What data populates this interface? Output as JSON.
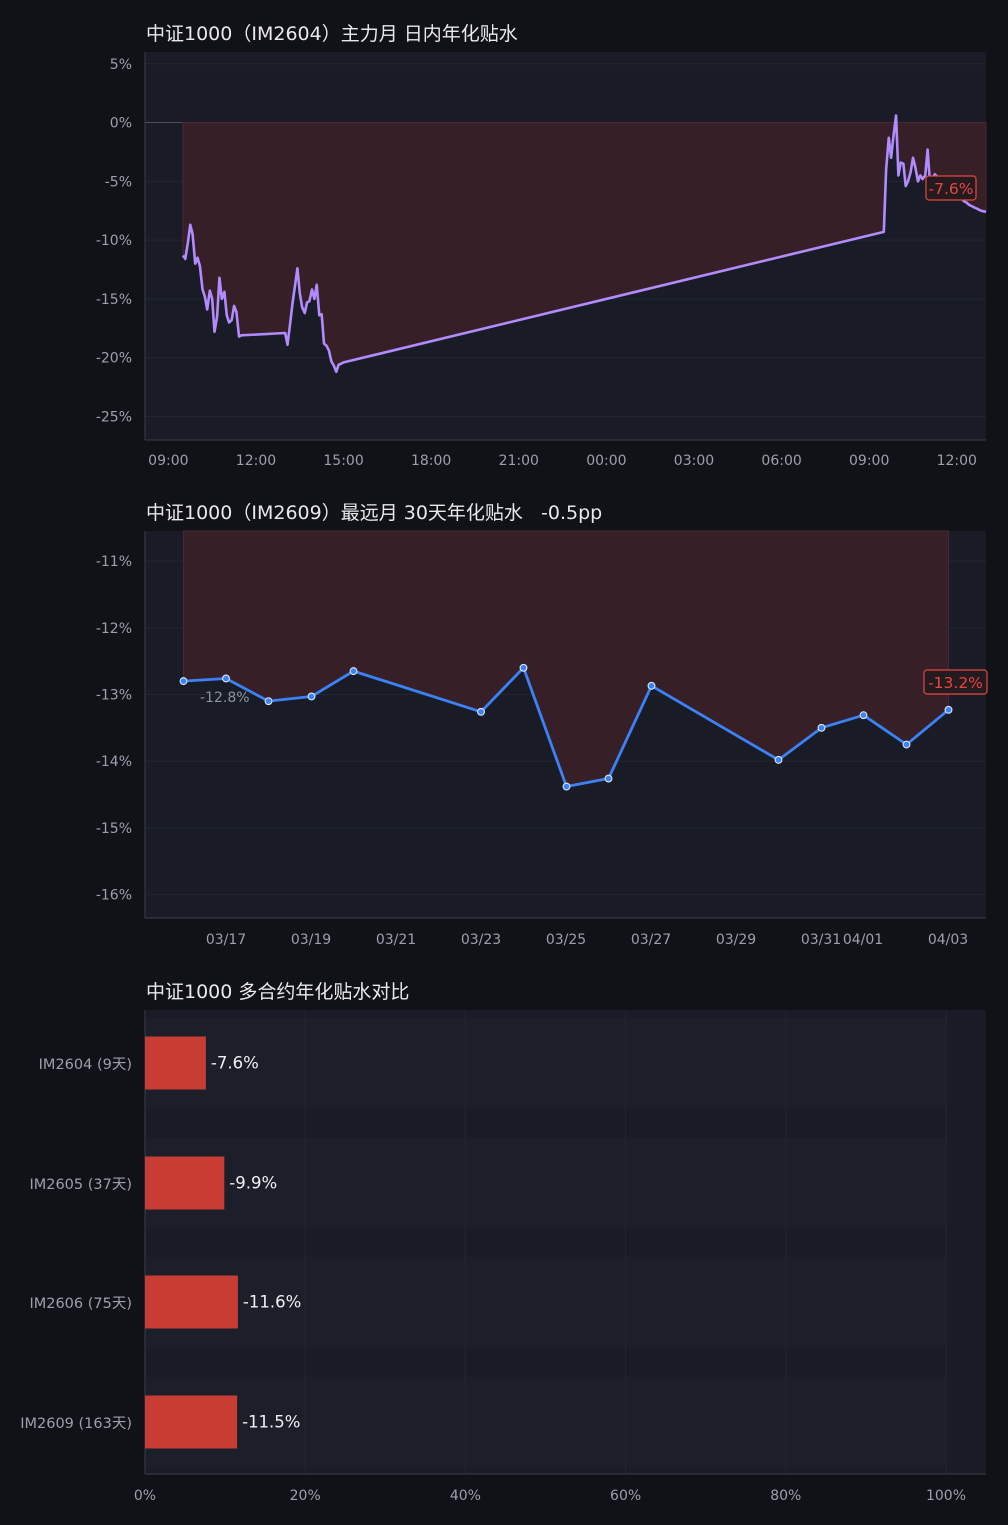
{
  "colors": {
    "background": "#101217",
    "plot_bg": "#191c26",
    "axis": "#3a3e4a",
    "grid": "#222633",
    "tick_text": "#9aa0ae",
    "title_text": "#e9e9ec",
    "fill_red": "#3a2028",
    "line_purple": "#b08cff",
    "line_blue": "#3b82f6",
    "bar_red": "#c73c33",
    "label_red": "#e5483d"
  },
  "chart_data": [
    {
      "type": "line",
      "title": "中证1000（IM2604）主力月 日内年化贴水",
      "x_ticks": [
        "09:00",
        "12:00",
        "15:00",
        "18:00",
        "21:00",
        "00:00",
        "03:00",
        "06:00",
        "09:00",
        "12:00"
      ],
      "y_ticks": [
        "5%",
        "0%",
        "-5%",
        "-10%",
        "-15%",
        "-20%",
        "-25%"
      ],
      "ylim": [
        -27,
        6
      ],
      "xlim_hours": [
        8.2,
        37.0
      ],
      "grid": true,
      "end_label": "-7.6%",
      "series": [
        {
          "x_hours": [
            9.5,
            9.58,
            9.67,
            9.75,
            9.83,
            9.92,
            10.0,
            10.08,
            10.17,
            10.25,
            10.33,
            10.42,
            10.5,
            10.58,
            10.67,
            10.75,
            10.83,
            10.92,
            11.0,
            11.08,
            11.17,
            11.25,
            11.33,
            11.42,
            11.5,
            13.0,
            13.08,
            13.17,
            13.25,
            13.33,
            13.42,
            13.5,
            13.58,
            13.67,
            13.75,
            13.83,
            13.92,
            14.0,
            14.08,
            14.17,
            14.25,
            14.33,
            14.42,
            14.5,
            14.58,
            14.67,
            14.75,
            14.83,
            14.92,
            15.0,
            33.5,
            33.58,
            33.67,
            33.75,
            33.83,
            33.92,
            34.0,
            34.08,
            34.17,
            34.25,
            34.33,
            34.42,
            34.5,
            34.58,
            34.67,
            34.75,
            34.83,
            34.92,
            35.0,
            35.08,
            35.17,
            35.25,
            35.33,
            35.42,
            35.5,
            35.58,
            35.67,
            35.75,
            35.83,
            35.92,
            36.0,
            36.08,
            36.17,
            36.25,
            36.33,
            36.42,
            36.5,
            36.58,
            36.67,
            36.75,
            36.83,
            36.92,
            37.0
          ],
          "y": [
            -11.3,
            -11.6,
            -10.2,
            -8.7,
            -9.5,
            -12.0,
            -11.5,
            -12.2,
            -14.2,
            -14.8,
            -15.9,
            -14.3,
            -15.0,
            -17.8,
            -16.5,
            -13.2,
            -15.0,
            -14.4,
            -16.4,
            -17.0,
            -16.8,
            -15.6,
            -16.1,
            -18.2,
            -18.1,
            -17.9,
            -18.9,
            -17.1,
            -15.4,
            -14.0,
            -12.4,
            -14.5,
            -15.7,
            -16.2,
            -15.3,
            -15.2,
            -14.2,
            -15.0,
            -13.8,
            -16.4,
            -16.3,
            -18.8,
            -19.0,
            -19.4,
            -20.3,
            -20.7,
            -21.2,
            -20.6,
            -20.5,
            -20.4,
            -9.3,
            -4.0,
            -1.3,
            -3.0,
            -1.2,
            0.6,
            -4.5,
            -3.4,
            -3.5,
            -5.4,
            -5.0,
            -4.2,
            -3.0,
            -3.8,
            -5.0,
            -4.5,
            -4.8,
            -4.5,
            -2.3,
            -5.1,
            -4.7,
            -4.4,
            -4.6,
            -4.9,
            -5.1,
            -5.4,
            -5.6,
            -5.7,
            -5.9,
            -6.0,
            -6.2,
            -6.4,
            -6.5,
            -6.7,
            -6.8,
            -7.0,
            -7.1,
            -7.2,
            -7.3,
            -7.4,
            -7.5,
            -7.55,
            -7.6
          ]
        }
      ]
    },
    {
      "type": "line",
      "title": "中证1000（IM2609）最远月 30天年化贴水   -0.5pp",
      "x_ticks": [
        "03/17",
        "03/19",
        "03/21",
        "03/23",
        "03/25",
        "03/27",
        "03/29",
        "03/31",
        "04/01",
        "04/03"
      ],
      "y_ticks": [
        "-11%",
        "-12%",
        "-13%",
        "-14%",
        "-15%",
        "-16%"
      ],
      "ylim": [
        -16.35,
        -10.55
      ],
      "grid": true,
      "start_label": "-12.8%",
      "end_label": "-13.2%",
      "series": [
        {
          "x": [
            "03/16",
            "03/17",
            "03/18",
            "03/19",
            "03/20",
            "03/23",
            "03/24",
            "03/25",
            "03/26",
            "03/27",
            "03/30",
            "03/31",
            "04/01",
            "04/02",
            "04/03"
          ],
          "y": [
            -12.8,
            -12.76,
            -13.1,
            -13.03,
            -12.65,
            -13.26,
            -12.6,
            -14.38,
            -14.26,
            -12.87,
            -13.98,
            -13.5,
            -13.31,
            -13.75,
            -13.23
          ]
        }
      ]
    },
    {
      "type": "bar",
      "orientation": "horizontal",
      "title": "中证1000 多合约年化贴水对比",
      "categories": [
        "IM2604 (9天)",
        "IM2605 (37天)",
        "IM2606 (75天)",
        "IM2609 (163天)"
      ],
      "values": [
        -7.6,
        -9.9,
        -11.6,
        -11.5
      ],
      "value_labels": [
        "-7.6%",
        "-9.9%",
        "-11.6%",
        "-11.5%"
      ],
      "x_ticks": [
        "0%",
        "20%",
        "40%",
        "60%",
        "80%",
        "100%"
      ],
      "xlim": [
        0,
        105
      ],
      "grid": true
    }
  ]
}
